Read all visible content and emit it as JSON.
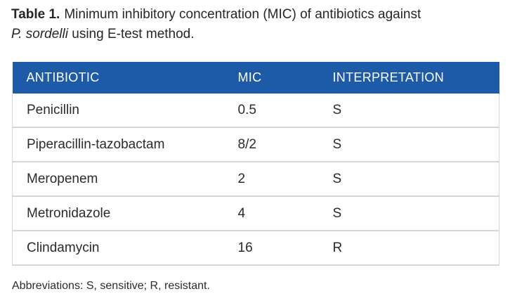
{
  "caption": {
    "label": "Table 1.",
    "text_line1": "Minimum inhibitory concentration (MIC) of antibiotics against",
    "species_italic": "P. sordelli",
    "text_line2_rest": " using E-test method."
  },
  "table": {
    "columns": {
      "antibiotic": "ANTIBIOTIC",
      "mic": "MIC",
      "interpretation": "INTERPRETATION"
    },
    "rows": [
      {
        "antibiotic": "Penicillin",
        "mic": "0.5",
        "interpretation": "S"
      },
      {
        "antibiotic": "Piperacillin-tazobactam",
        "mic": "8/2",
        "interpretation": "S"
      },
      {
        "antibiotic": "Meropenem",
        "mic": "2",
        "interpretation": "S"
      },
      {
        "antibiotic": "Metronidazole",
        "mic": "4",
        "interpretation": "S"
      },
      {
        "antibiotic": "Clindamycin",
        "mic": "16",
        "interpretation": "R"
      }
    ],
    "colors": {
      "header_background": "#1d5ba8",
      "header_text": "#ffffff",
      "row_divider": "#d6d6d6",
      "body_text": "#2b2b2b"
    }
  },
  "footnote": "Abbreviations: S, sensitive; R, resistant."
}
